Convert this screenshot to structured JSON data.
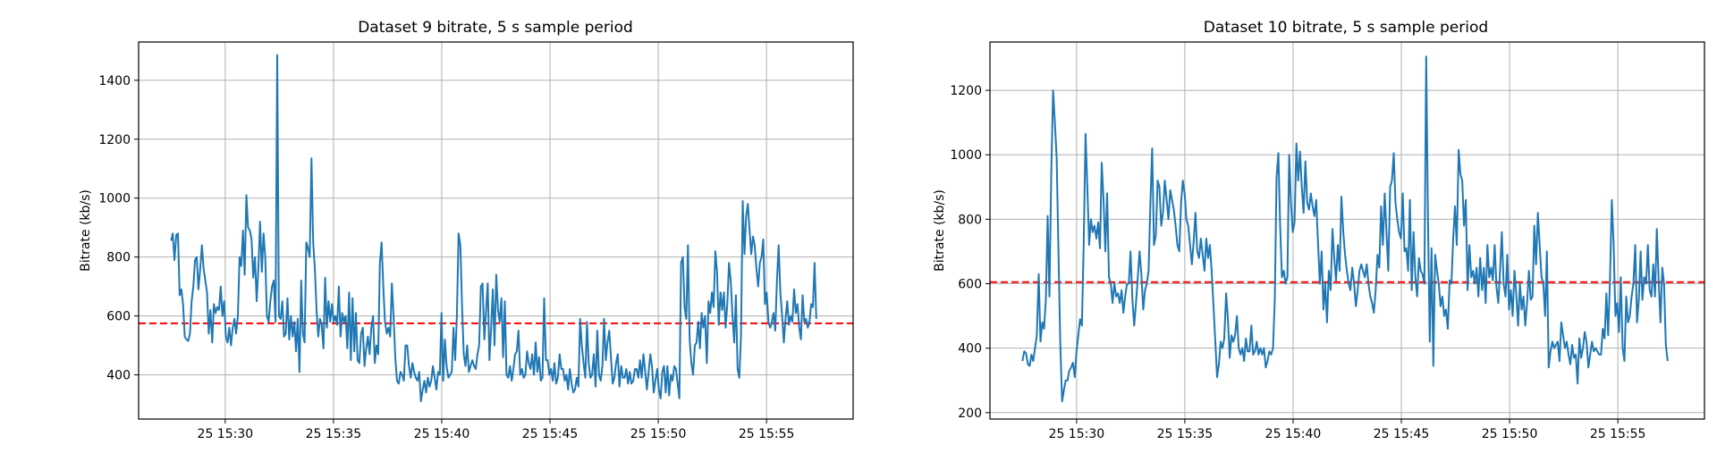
{
  "chart_data": [
    {
      "type": "line",
      "title": "Dataset 9 bitrate, 5 s sample period",
      "ylabel": "Bitrate (kb/s)",
      "xlabel": "",
      "x_ticks": [
        "25 15:30",
        "25 15:35",
        "25 15:40",
        "25 15:45",
        "25 15:50",
        "25 15:55"
      ],
      "x_tick_minutes": [
        30,
        35,
        40,
        45,
        50,
        55
      ],
      "xlim_minutes": [
        26,
        59
      ],
      "x_start_minute": 27.5,
      "x_end_minute": 57.3,
      "y_ticks": [
        400,
        600,
        800,
        1000,
        1200,
        1400
      ],
      "ylim": [
        250,
        1530
      ],
      "grid": true,
      "reference_line": 575,
      "series": [
        {
          "values": [
            855,
            880,
            790,
            875,
            880,
            670,
            690,
            640,
            530,
            520,
            515,
            540,
            650,
            700,
            790,
            800,
            690,
            760,
            840,
            760,
            720,
            680,
            540,
            620,
            510,
            640,
            610,
            630,
            620,
            700,
            600,
            650,
            530,
            510,
            560,
            500,
            560,
            590,
            540,
            600,
            800,
            770,
            890,
            740,
            1010,
            900,
            890,
            860,
            730,
            800,
            650,
            760,
            920,
            750,
            880,
            800,
            600,
            580,
            650,
            700,
            720,
            580,
            1485,
            600,
            590,
            650,
            530,
            540,
            660,
            520,
            600,
            530,
            580,
            480,
            590,
            410,
            720,
            540,
            510,
            850,
            830,
            800,
            1135,
            850,
            760,
            620,
            530,
            590,
            570,
            490,
            730,
            560,
            650,
            580,
            640,
            580,
            600,
            570,
            700,
            530,
            610,
            580,
            600,
            490,
            680,
            450,
            660,
            480,
            610,
            450,
            440,
            540,
            560,
            430,
            490,
            530,
            470,
            560,
            600,
            440,
            500,
            470,
            780,
            850,
            700,
            580,
            540,
            560,
            530,
            710,
            600,
            460,
            380,
            370,
            410,
            400,
            380,
            500,
            500,
            430,
            390,
            440,
            410,
            390,
            380,
            410,
            310,
            350,
            380,
            340,
            390,
            360,
            380,
            430,
            390,
            350,
            410,
            400,
            610,
            380,
            520,
            430,
            390,
            400,
            410,
            560,
            450,
            600,
            880,
            840,
            630,
            470,
            430,
            500,
            410,
            430,
            450,
            430,
            420,
            470,
            500,
            700,
            710,
            520,
            620,
            710,
            450,
            560,
            690,
            500,
            740,
            620,
            580,
            660,
            460,
            650,
            400,
            390,
            430,
            380,
            420,
            470,
            480,
            550,
            400,
            420,
            390,
            400,
            480,
            440,
            420,
            470,
            400,
            510,
            410,
            460,
            380,
            390,
            660,
            450,
            450,
            400,
            420,
            380,
            440,
            370,
            390,
            470,
            420,
            420,
            380,
            400,
            350,
            420,
            370,
            340,
            350,
            390,
            360,
            590,
            500,
            440,
            390,
            580,
            440,
            390,
            400,
            470,
            360,
            550,
            400,
            380,
            430,
            590,
            450,
            510,
            550,
            460,
            370,
            390,
            440,
            470,
            360,
            430,
            390,
            390,
            420,
            370,
            410,
            370,
            380,
            420,
            420,
            390,
            450,
            390,
            470,
            410,
            350,
            410,
            470,
            430,
            340,
            380,
            420,
            350,
            320,
            410,
            430,
            340,
            430,
            330,
            400,
            380,
            430,
            420,
            370,
            320,
            780,
            800,
            630,
            590,
            840,
            520,
            440,
            400,
            500,
            510,
            580,
            490,
            610,
            560,
            600,
            440,
            650,
            610,
            680,
            630,
            820,
            750,
            570,
            680,
            620,
            680,
            560,
            640,
            780,
            720,
            600,
            510,
            670,
            420,
            390,
            530,
            990,
            810,
            940,
            980,
            890,
            810,
            870,
            840,
            760,
            700,
            780,
            800,
            860,
            640,
            680,
            580,
            560,
            580,
            610,
            550,
            720,
            840,
            680,
            600,
            510,
            590,
            650,
            570,
            600,
            580,
            690,
            610,
            640,
            560,
            520,
            670,
            580,
            590,
            560,
            580,
            640,
            630,
            780,
            590
          ]
        }
      ]
    },
    {
      "type": "line",
      "title": "Dataset 10 bitrate, 5 s sample period",
      "ylabel": "Bitrate (kb/s)",
      "xlabel": "",
      "x_ticks": [
        "25 15:30",
        "25 15:35",
        "25 15:40",
        "25 15:45",
        "25 15:50",
        "25 15:55"
      ],
      "x_tick_minutes": [
        30,
        35,
        40,
        45,
        50,
        55
      ],
      "xlim_minutes": [
        26,
        59
      ],
      "x_start_minute": 27.5,
      "x_end_minute": 57.3,
      "y_ticks": [
        200,
        400,
        600,
        800,
        1000,
        1200
      ],
      "ylim": [
        180,
        1350
      ],
      "grid": true,
      "reference_line": 605,
      "series": [
        {
          "values": [
            360,
            390,
            385,
            350,
            345,
            380,
            360,
            400,
            440,
            630,
            420,
            480,
            460,
            550,
            810,
            560,
            950,
            1200,
            1100,
            990,
            700,
            420,
            235,
            270,
            300,
            300,
            330,
            340,
            355,
            310,
            390,
            440,
            490,
            470,
            720,
            1065,
            900,
            720,
            800,
            760,
            780,
            740,
            790,
            710,
            975,
            860,
            700,
            880,
            620,
            600,
            540,
            600,
            560,
            570,
            540,
            580,
            510,
            560,
            600,
            600,
            700,
            550,
            470,
            540,
            620,
            700,
            630,
            520,
            580,
            600,
            640,
            850,
            1020,
            720,
            750,
            920,
            900,
            780,
            820,
            920,
            860,
            800,
            890,
            860,
            830,
            780,
            720,
            700,
            850,
            920,
            880,
            800,
            780,
            720,
            660,
            730,
            820,
            700,
            680,
            740,
            690,
            640,
            740,
            680,
            720,
            640,
            530,
            420,
            310,
            350,
            420,
            400,
            430,
            570,
            490,
            370,
            440,
            420,
            440,
            500,
            400,
            380,
            400,
            360,
            430,
            390,
            390,
            470,
            380,
            390,
            420,
            380,
            400,
            380,
            400,
            340,
            360,
            390,
            380,
            400,
            550,
            930,
            1005,
            780,
            620,
            640,
            600,
            620,
            1000,
            850,
            760,
            790,
            1035,
            920,
            1010,
            900,
            820,
            980,
            850,
            830,
            880,
            840,
            810,
            860,
            730,
            600,
            700,
            520,
            600,
            480,
            640,
            580,
            770,
            680,
            610,
            720,
            640,
            870,
            760,
            690,
            640,
            600,
            580,
            650,
            600,
            530,
            580,
            640,
            660,
            640,
            620,
            660,
            600,
            560,
            540,
            510,
            580,
            690,
            650,
            840,
            720,
            880,
            760,
            640,
            900,
            920,
            1005,
            850,
            800,
            760,
            740,
            880,
            700,
            710,
            640,
            860,
            580,
            760,
            620,
            560,
            680,
            640,
            630,
            600,
            1305,
            800,
            420,
            710,
            345,
            690,
            640,
            600,
            530,
            560,
            500,
            520,
            460,
            610,
            600,
            740,
            840,
            720,
            1015,
            940,
            920,
            780,
            860,
            580,
            720,
            620,
            640,
            600,
            650,
            560,
            680,
            580,
            650,
            540,
            720,
            620,
            650,
            610,
            720,
            590,
            540,
            640,
            760,
            600,
            560,
            690,
            520,
            580,
            500,
            640,
            570,
            470,
            600,
            520,
            560,
            470,
            540,
            640,
            550,
            560,
            780,
            660,
            820,
            720,
            620,
            600,
            500,
            700,
            340,
            390,
            420,
            400,
            410,
            420,
            360,
            480,
            440,
            400,
            420,
            380,
            350,
            410,
            370,
            380,
            290,
            430,
            370,
            400,
            450,
            420,
            340,
            380,
            420,
            390,
            400,
            390,
            380,
            380,
            460,
            430,
            570,
            440,
            610,
            860,
            720,
            500,
            540,
            450,
            620,
            400,
            360,
            560,
            480,
            500,
            560,
            600,
            720,
            480,
            550,
            700,
            550,
            620,
            600,
            720,
            580,
            560,
            660,
            560,
            770,
            610,
            480,
            650,
            600,
            410,
            360
          ]
        }
      ]
    }
  ],
  "colors": {
    "series": "#1f77b4",
    "reference_line": "#ff0000",
    "grid": "#b0b0b0",
    "frame": "#000000"
  }
}
